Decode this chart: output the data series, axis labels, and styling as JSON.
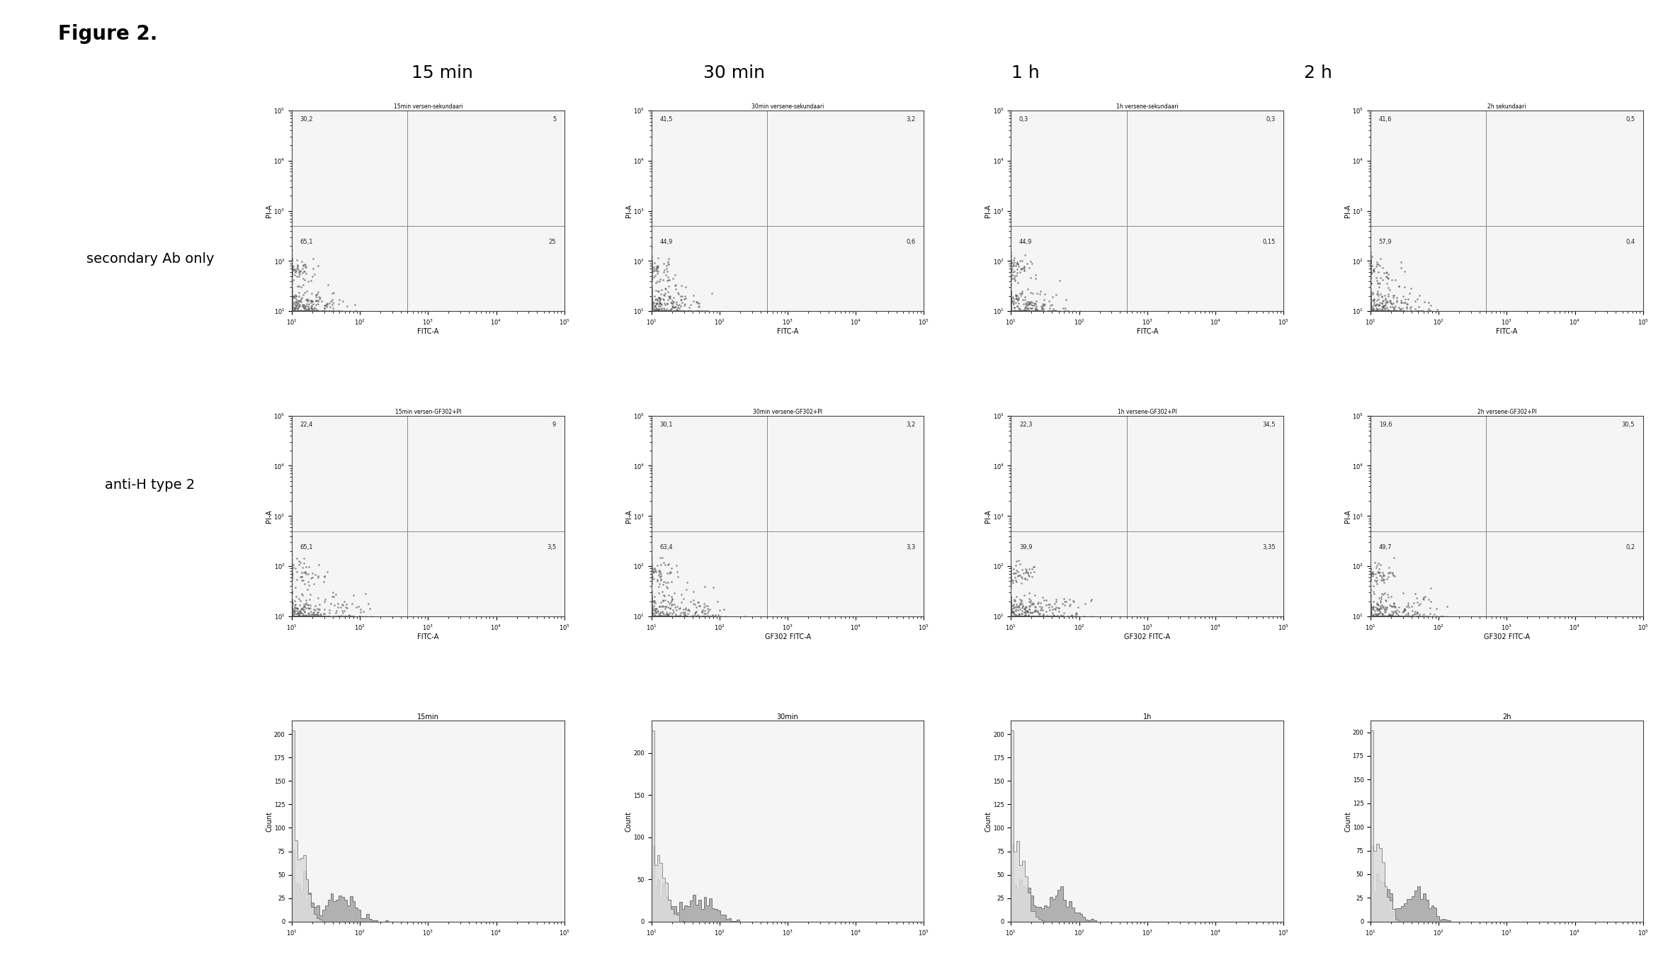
{
  "figure_title": "Figure 2.",
  "col_labels": [
    "15 min",
    "30 min",
    "1 h",
    "2 h"
  ],
  "row_labels": [
    "secondary Ab only",
    "anti-H type 2"
  ],
  "scatter_titles_row1": [
    "15min versen-sekundaari",
    "30min versene-sekundaari",
    "1h versene-sekundaari",
    "2h sekundaari"
  ],
  "scatter_titles_row2": [
    "15min versen-GF302+PI",
    "30min versene-GF302+PI",
    "1h versene-GF302+PI",
    "2h versene-GF302+PI"
  ],
  "hist_titles": [
    "15min",
    "30min",
    "1h",
    "2h"
  ],
  "quadrant_values_row1": [
    {
      "ul": "30,2",
      "ur": "5",
      "ll": "65,1",
      "lr": "25"
    },
    {
      "ul": "41,5",
      "ur": "3,2",
      "ll": "44,9",
      "lr": "0,6"
    },
    {
      "ul": "0,3",
      "ur": "0,3",
      "ll": "44,9",
      "lr": "0,15"
    },
    {
      "ul": "41,6",
      "ur": "0,5",
      "ll": "57,9",
      "lr": "0,4"
    }
  ],
  "quadrant_values_row2": [
    {
      "ul": "22,4",
      "ur": "9",
      "ll": "65,1",
      "lr": "3,5"
    },
    {
      "ul": "30,1",
      "ur": "3,2",
      "ll": "63,4",
      "lr": "3,3"
    },
    {
      "ul": "22,3",
      "ur": "34,5",
      "ll": "39,9",
      "lr": "3,35"
    },
    {
      "ul": "19,6",
      "ur": "30,5",
      "ll": "49,7",
      "lr": "0,2"
    }
  ],
  "xlabel_row1": "FITC-A",
  "xlabel_row2_col1": "FITC-A",
  "xlabel_row2_others": "GF302 FITC-A",
  "ylabel_scatter": "PI-A",
  "bg_color": "#ffffff",
  "scatter_dot_color": "#555555",
  "quadrant_line_color": "#888888",
  "title_fontsize": 20,
  "col_label_fontsize": 18,
  "row_label_fontsize": 14
}
